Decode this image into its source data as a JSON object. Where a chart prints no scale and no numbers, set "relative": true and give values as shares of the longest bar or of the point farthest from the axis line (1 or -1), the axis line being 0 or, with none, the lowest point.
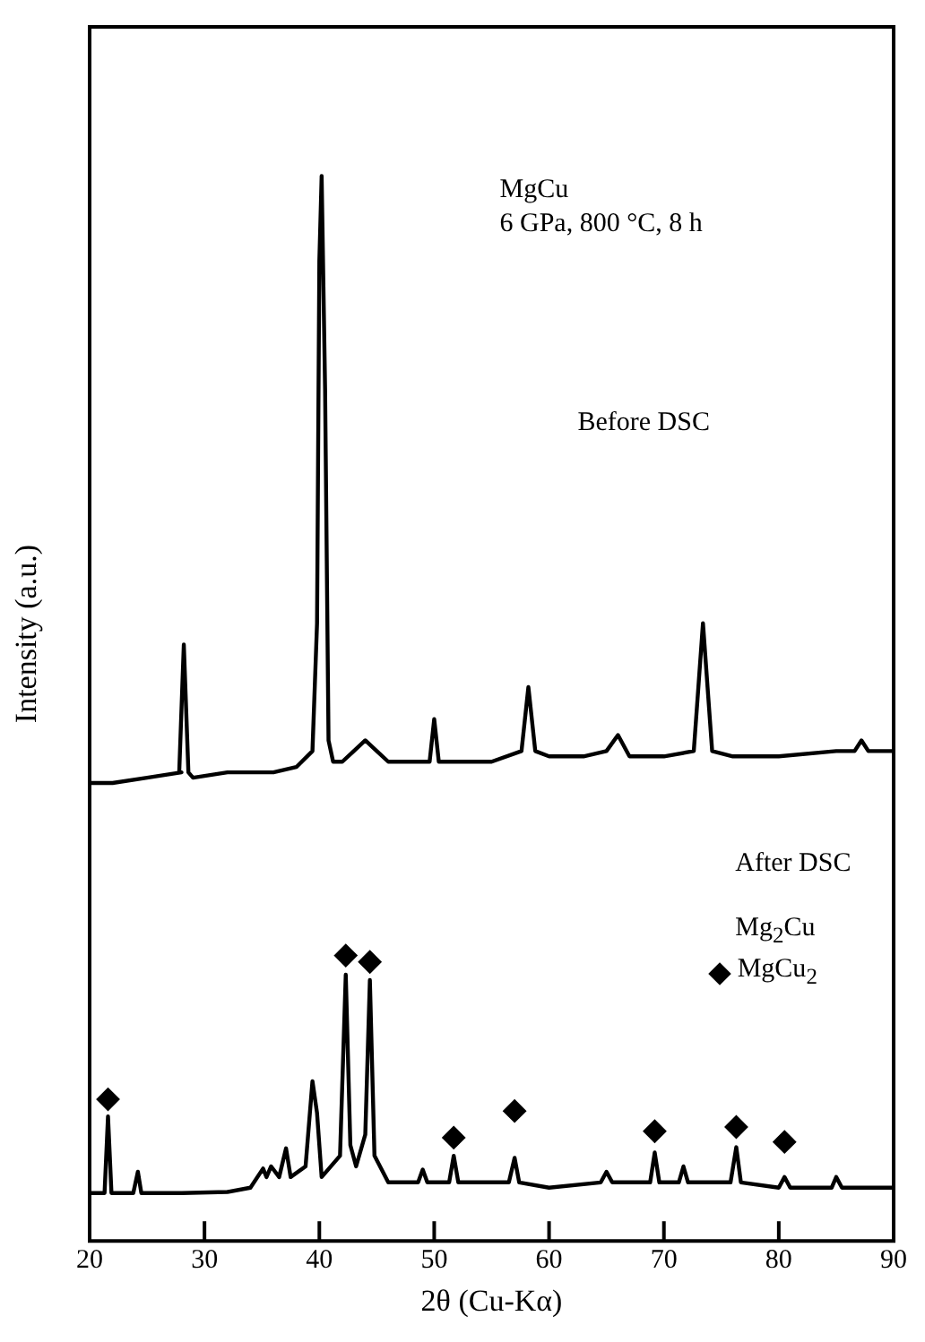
{
  "chart_data": {
    "type": "line",
    "relative": true,
    "xlabel": "2θ (Cu-Kα)",
    "ylabel": "Intensity (a.u.)",
    "xlim": [
      20,
      90
    ],
    "xticks": [
      20,
      30,
      40,
      50,
      60,
      70,
      80,
      90
    ],
    "grid": false,
    "legend": "right",
    "marker": "none",
    "line_style": "solid",
    "annotations": [
      "MgCu",
      "6 GPa, 800 °C, 8 h",
      "Before DSC",
      "After DSC",
      "Mg$_{2}$Cu"
    ],
    "series": [
      {
        "color": "#000000",
        "x": [
          20,
          22,
          25,
          28,
          27.8,
          28.2,
          28.6,
          29,
          32,
          36,
          38,
          39.4,
          39.8,
          40.0,
          40.2,
          40.5,
          40.8,
          41.2,
          42,
          43,
          44,
          45,
          46,
          48,
          49.6,
          50,
          50.4,
          52,
          55,
          57.6,
          58.2,
          58.8,
          60,
          63,
          65,
          66,
          67,
          70,
          72.6,
          73.0,
          73.4,
          73.8,
          74.2,
          76,
          80,
          85,
          86.6,
          87.2,
          87.8,
          90
        ],
        "values": [
          0.43,
          0.43,
          0.435,
          0.44,
          0.44,
          0.56,
          0.44,
          0.435,
          0.44,
          0.44,
          0.445,
          0.46,
          0.58,
          0.92,
          1.0,
          0.8,
          0.47,
          0.45,
          0.45,
          0.46,
          0.47,
          0.46,
          0.45,
          0.45,
          0.45,
          0.49,
          0.45,
          0.45,
          0.45,
          0.46,
          0.52,
          0.46,
          0.455,
          0.455,
          0.46,
          0.475,
          0.455,
          0.455,
          0.46,
          0.52,
          0.58,
          0.52,
          0.46,
          0.455,
          0.455,
          0.46,
          0.46,
          0.47,
          0.46,
          0.46
        ]
      },
      {
        "color": "#000000",
        "x": [
          20,
          21.3,
          21.6,
          21.9,
          23.8,
          24.2,
          24.5,
          28,
          32,
          34,
          35.1,
          35.4,
          35.8,
          36.5,
          37.1,
          37.5,
          38.8,
          39.4,
          39.8,
          40.2,
          41.8,
          42.3,
          42.7,
          43.2,
          44,
          44.4,
          44.8,
          46,
          48.6,
          49,
          49.4,
          51.3,
          51.7,
          52.1,
          56.5,
          57,
          57.4,
          60,
          64.5,
          65,
          65.5,
          68.8,
          69.2,
          69.6,
          71.3,
          71.7,
          72.1,
          75.8,
          76.3,
          76.7,
          80,
          80.5,
          81,
          84.6,
          85,
          85.5,
          90
        ],
        "values": [
          0.045,
          0.045,
          0.117,
          0.045,
          0.045,
          0.065,
          0.045,
          0.045,
          0.046,
          0.05,
          0.068,
          0.06,
          0.07,
          0.06,
          0.087,
          0.06,
          0.07,
          0.15,
          0.12,
          0.06,
          0.08,
          0.25,
          0.09,
          0.07,
          0.1,
          0.245,
          0.08,
          0.055,
          0.055,
          0.067,
          0.055,
          0.055,
          0.08,
          0.055,
          0.055,
          0.078,
          0.055,
          0.05,
          0.055,
          0.065,
          0.055,
          0.055,
          0.083,
          0.055,
          0.055,
          0.07,
          0.055,
          0.055,
          0.088,
          0.055,
          0.05,
          0.06,
          0.05,
          0.05,
          0.06,
          0.05,
          0.05
        ]
      },
      {
        "name": "MgCu$_{2}$",
        "type": "scatter",
        "marker": "diamond",
        "color": "#000000",
        "x": [
          21.6,
          42.3,
          44.4,
          51.7,
          57,
          69.2,
          76.3,
          80.5
        ],
        "values": [
          0.133,
          0.268,
          0.262,
          0.097,
          0.122,
          0.103,
          0.107,
          0.093
        ]
      }
    ]
  }
}
